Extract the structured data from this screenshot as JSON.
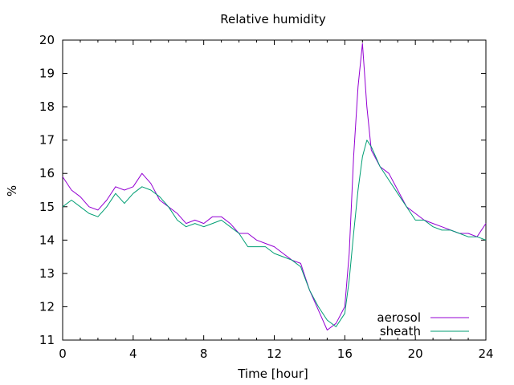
{
  "chart_data": {
    "type": "line",
    "title": "Relative humidity",
    "xlabel": "Time [hour]",
    "ylabel": "%",
    "xlim": [
      0,
      24
    ],
    "ylim": [
      11,
      20
    ],
    "xticks": [
      0,
      4,
      8,
      12,
      16,
      20,
      24
    ],
    "xtick_labels": [
      "0",
      "4",
      "8",
      "12",
      "16",
      "20",
      "24"
    ],
    "yticks": [
      11,
      12,
      13,
      14,
      15,
      16,
      17,
      18,
      19,
      20
    ],
    "ytick_labels": [
      "11",
      "12",
      "13",
      "14",
      "15",
      "16",
      "17",
      "18",
      "19",
      "20"
    ],
    "grid": false,
    "legend_position": "bottom-right",
    "series": [
      {
        "name": "aerosol",
        "color": "#9400d3",
        "x": [
          0,
          0.5,
          1,
          1.5,
          2,
          2.5,
          3,
          3.5,
          4,
          4.5,
          5,
          5.5,
          6,
          6.5,
          7,
          7.5,
          8,
          8.5,
          9,
          9.5,
          10,
          10.5,
          11,
          11.5,
          12,
          12.5,
          13,
          13.5,
          14,
          14.5,
          15,
          15.5,
          16,
          16.25,
          16.5,
          16.75,
          17,
          17.25,
          17.5,
          18,
          18.5,
          19,
          19.5,
          20,
          20.5,
          21,
          21.5,
          22,
          22.5,
          23,
          23.5,
          24
        ],
        "y": [
          15.9,
          15.5,
          15.3,
          15.0,
          14.9,
          15.2,
          15.6,
          15.5,
          15.6,
          16.0,
          15.7,
          15.2,
          15.0,
          14.8,
          14.5,
          14.6,
          14.5,
          14.7,
          14.7,
          14.5,
          14.2,
          14.2,
          14.0,
          13.9,
          13.8,
          13.6,
          13.4,
          13.3,
          12.5,
          11.9,
          11.3,
          11.5,
          12.0,
          13.6,
          16.5,
          18.6,
          19.9,
          18.0,
          16.7,
          16.2,
          16.0,
          15.5,
          15.0,
          14.8,
          14.6,
          14.5,
          14.4,
          14.3,
          14.2,
          14.2,
          14.1,
          14.5
        ]
      },
      {
        "name": "sheath",
        "color": "#009e73",
        "x": [
          0,
          0.5,
          1,
          1.5,
          2,
          2.5,
          3,
          3.5,
          4,
          4.5,
          5,
          5.5,
          6,
          6.5,
          7,
          7.5,
          8,
          8.5,
          9,
          9.5,
          10,
          10.5,
          11,
          11.5,
          12,
          12.5,
          13,
          13.5,
          14,
          14.5,
          15,
          15.5,
          16,
          16.25,
          16.5,
          16.75,
          17,
          17.25,
          17.5,
          18,
          18.5,
          19,
          19.5,
          20,
          20.5,
          21,
          21.5,
          22,
          22.5,
          23,
          23.5,
          24
        ],
        "y": [
          15.0,
          15.2,
          15.0,
          14.8,
          14.7,
          15.0,
          15.4,
          15.1,
          15.4,
          15.6,
          15.5,
          15.3,
          15.0,
          14.6,
          14.4,
          14.5,
          14.4,
          14.5,
          14.6,
          14.4,
          14.2,
          13.8,
          13.8,
          13.8,
          13.6,
          13.5,
          13.4,
          13.2,
          12.5,
          12.0,
          11.6,
          11.4,
          11.8,
          12.8,
          14.2,
          15.5,
          16.5,
          17.0,
          16.8,
          16.2,
          15.8,
          15.4,
          15.0,
          14.6,
          14.6,
          14.4,
          14.3,
          14.3,
          14.2,
          14.1,
          14.1,
          14.0
        ]
      }
    ]
  }
}
